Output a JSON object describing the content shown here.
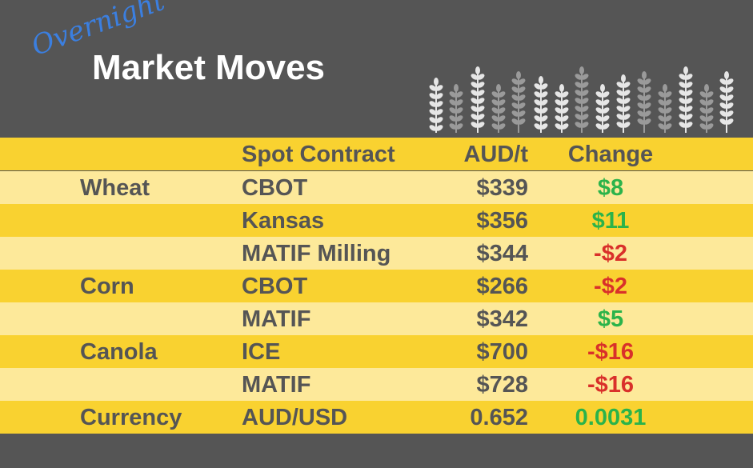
{
  "header": {
    "kicker": "Overnight",
    "title": "Market Moves"
  },
  "table": {
    "columns": [
      "Spot Contract",
      "AUD/t",
      "Change"
    ],
    "rows": [
      {
        "commodity": "Wheat",
        "contract": "CBOT",
        "price": "$339",
        "change": "$8",
        "change_color": "#2bb34a"
      },
      {
        "contract": "Kansas",
        "price": "$356",
        "change": "$11",
        "change_color": "#2bb34a"
      },
      {
        "contract": "MATIF Milling",
        "price": "$344",
        "change": "-$2",
        "change_color": "#d9302a"
      },
      {
        "commodity": "Corn",
        "contract": "CBOT",
        "price": "$266",
        "change": "-$2",
        "change_color": "#d9302a"
      },
      {
        "contract": "MATIF",
        "price": "$342",
        "change": "$5",
        "change_color": "#2bb34a"
      },
      {
        "commodity": "Canola",
        "contract": "ICE",
        "price": "$700",
        "change": "-$16",
        "change_color": "#d9302a"
      },
      {
        "contract": "MATIF",
        "price": "$728",
        "change": "-$16",
        "change_color": "#d9302a"
      },
      {
        "commodity": "Currency",
        "contract": "AUD/USD",
        "price": "0.652",
        "change": "0.0031",
        "change_color": "#2bb34a"
      }
    ]
  }
}
